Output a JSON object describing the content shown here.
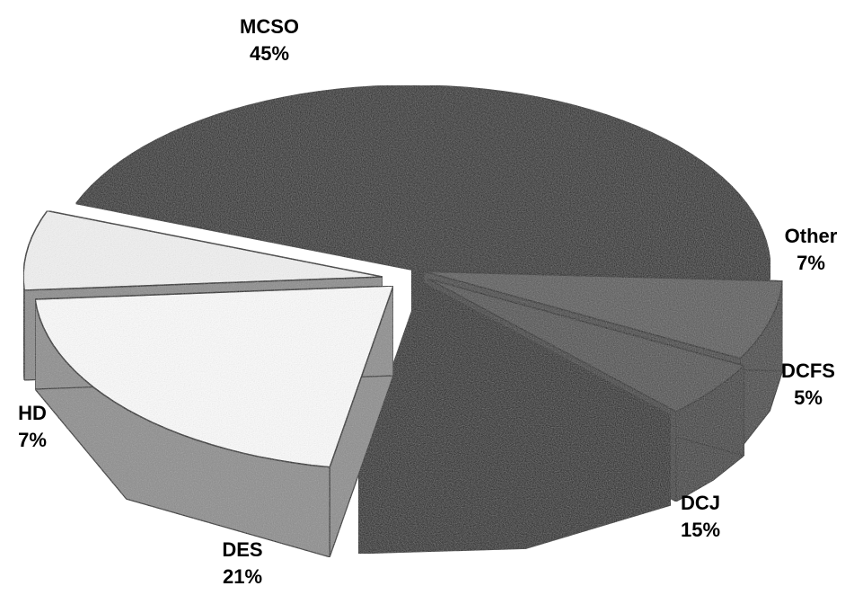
{
  "chart_data": {
    "type": "pie",
    "style": "3d-exploded",
    "categories": [
      "MCSO",
      "Other",
      "DCFS",
      "DCJ",
      "DES",
      "HD"
    ],
    "values": [
      45,
      7,
      5,
      15,
      21,
      7
    ],
    "value_labels": [
      "45%",
      "7%",
      "5%",
      "15%",
      "21%",
      "7%"
    ],
    "title": "",
    "legend": "none",
    "colors": {
      "MCSO": "#151515",
      "Other": "#555555",
      "DCFS": "#494949",
      "DCJ": "#080808",
      "DES": "#fdfdfd",
      "HD": "#f3f3f3"
    },
    "side_colors": {
      "MCSO": "#0a0a0a",
      "Other": "#3a3a3a",
      "DCFS": "#333333",
      "DCJ": "#020202",
      "DES": "#8c8c8c",
      "HD": "#8a8a8a"
    }
  }
}
